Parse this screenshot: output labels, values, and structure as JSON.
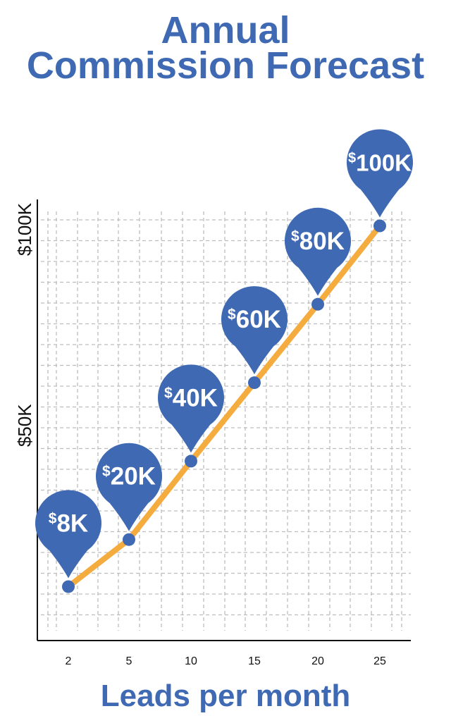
{
  "chart_data": {
    "type": "line",
    "title_lines": [
      "Annual",
      "Commission Forecast"
    ],
    "xlabel": "Leads per month",
    "ylabel": "",
    "x": [
      2,
      5,
      10,
      15,
      20,
      25
    ],
    "x_tick_labels": [
      "2",
      "5",
      "10",
      "15",
      "20",
      "25"
    ],
    "y_ticks": [
      {
        "value": 50,
        "label": "$50K"
      },
      {
        "value": 100,
        "label": "$100K"
      }
    ],
    "series": [
      {
        "values": [
          8,
          20,
          40,
          60,
          80,
          100
        ],
        "data_labels": [
          "8K",
          "20K",
          "40K",
          "60K",
          "80K",
          "100K"
        ],
        "currency_symbol": "$"
      }
    ],
    "ylim": [
      0,
      105
    ],
    "grid": true,
    "colors": {
      "title": "#3f6ab3",
      "line": "#f5ac3f",
      "marker": "#3f6ab3",
      "pin": "#3f6ab3",
      "grid": "#bdbdbd",
      "axis": "#111111"
    }
  }
}
